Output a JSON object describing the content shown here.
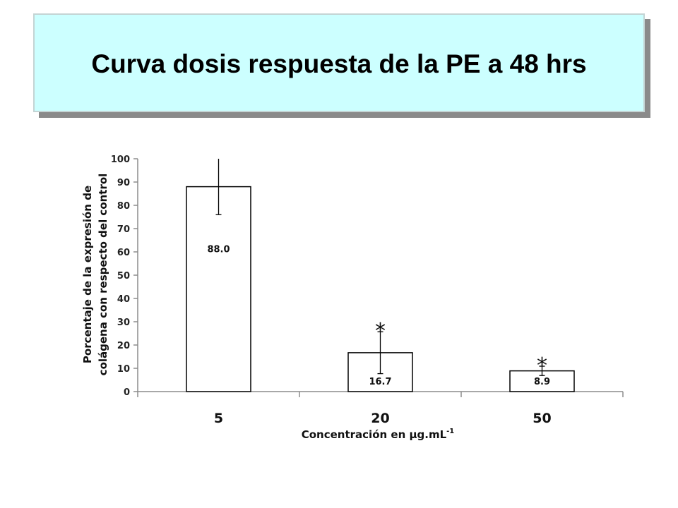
{
  "slide": {
    "title": "Curva dosis respuesta de la PE a 48 hrs"
  },
  "chart_data": {
    "type": "bar",
    "categories": [
      "5",
      "20",
      "50"
    ],
    "values": [
      88.0,
      16.7,
      8.9
    ],
    "value_labels": [
      "88.0",
      "16.7",
      "8.9"
    ],
    "error_bars": [
      12,
      9,
      2
    ],
    "significance_markers": [
      "",
      "*",
      "*"
    ],
    "ylim": [
      0,
      100
    ],
    "yticks": [
      0,
      10,
      20,
      30,
      40,
      50,
      60,
      70,
      80,
      90,
      100
    ],
    "ylabel_line1": "Porcentaje de la expresión de",
    "ylabel_line2": "colágena con respecto del control",
    "xlabel": "Concentración en µg.mL",
    "xlabel_sup": "-1",
    "grid": false,
    "colors": {
      "bar_fill": "#ffffff",
      "bar_stroke": "#000000",
      "axis": "#8c8c8c"
    }
  }
}
